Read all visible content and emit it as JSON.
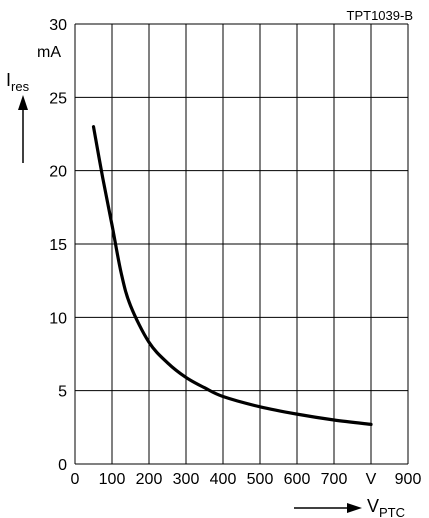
{
  "chart_data": {
    "type": "line",
    "figure_id": "TPT1039-B",
    "ylabel": {
      "main": "I",
      "sub": "res"
    },
    "yunit": "mA",
    "xlabel": {
      "main": "V",
      "sub": "PTC"
    },
    "xunit": "V",
    "xlim": [
      0,
      900
    ],
    "ylim": [
      0,
      30
    ],
    "x_ticks": [
      "0",
      "100",
      "200",
      "300",
      "400",
      "500",
      "600",
      "700",
      "",
      "900"
    ],
    "y_ticks": [
      "0",
      "5",
      "10",
      "15",
      "20",
      "25",
      "30"
    ],
    "grid": true,
    "series": [
      {
        "x": [
          50,
          75,
          100,
          125,
          150,
          200,
          250,
          300,
          350,
          400,
          500,
          600,
          700,
          800
        ],
        "y": [
          23.0,
          19.5,
          16.3,
          13.0,
          10.8,
          8.3,
          6.9,
          5.9,
          5.2,
          4.6,
          3.9,
          3.4,
          3.0,
          2.7
        ]
      }
    ],
    "colors": {
      "line": "#000000",
      "grid": "#000000"
    }
  }
}
